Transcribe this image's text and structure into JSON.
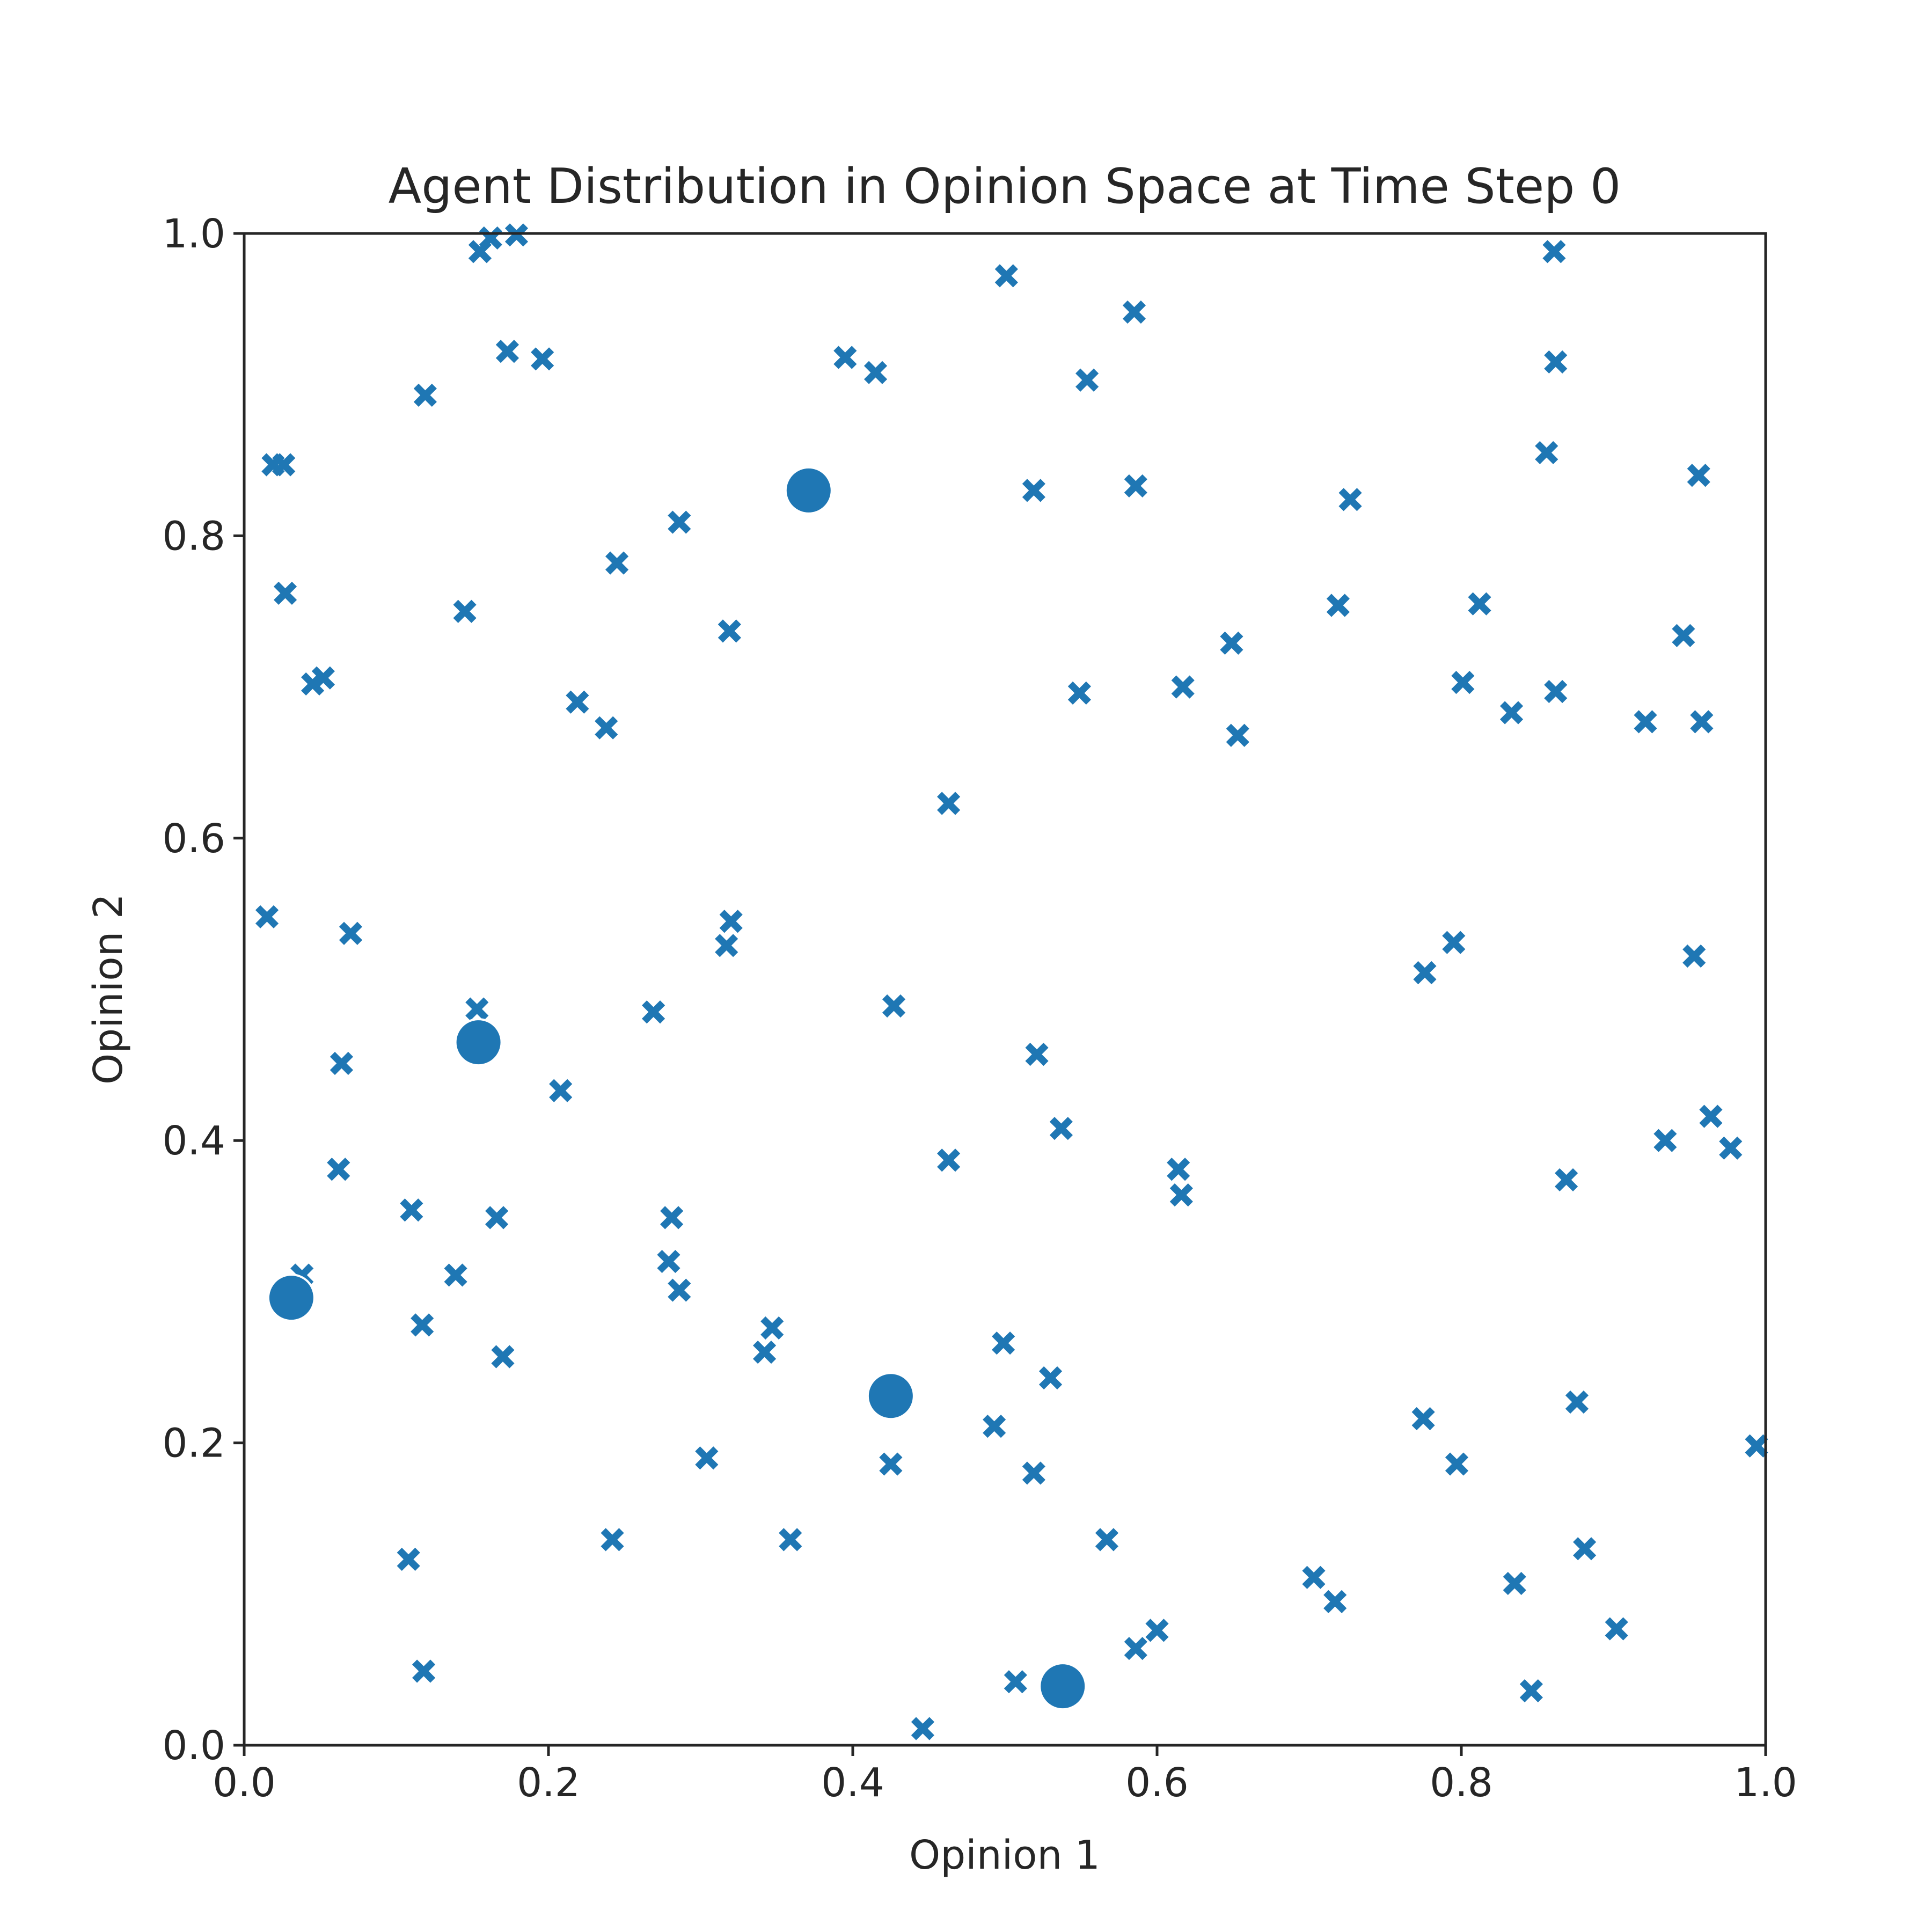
{
  "chart_data": {
    "type": "scatter",
    "title": "Agent Distribution in Opinion Space at Time Step 0",
    "xlabel": "Opinion 1",
    "ylabel": "Opinion 2",
    "xlim": [
      0.0,
      1.0
    ],
    "ylim": [
      0.0,
      1.0
    ],
    "xticks": [
      "0.0",
      "0.2",
      "0.4",
      "0.6",
      "0.8",
      "1.0"
    ],
    "yticks": [
      "0.0",
      "0.2",
      "0.4",
      "0.6",
      "0.8",
      "1.0"
    ],
    "grid": false,
    "marker_color": "#1f77b4",
    "series": [
      {
        "marker": "x",
        "points": [
          [
            0.155,
            0.988
          ],
          [
            0.162,
            0.997
          ],
          [
            0.179,
            0.999
          ],
          [
            0.173,
            0.922
          ],
          [
            0.196,
            0.917
          ],
          [
            0.119,
            0.893
          ],
          [
            0.019,
            0.847
          ],
          [
            0.026,
            0.847
          ],
          [
            0.027,
            0.762
          ],
          [
            0.145,
            0.75
          ],
          [
            0.045,
            0.702
          ],
          [
            0.052,
            0.706
          ],
          [
            0.219,
            0.69
          ],
          [
            0.238,
            0.673
          ],
          [
            0.245,
            0.782
          ],
          [
            0.286,
            0.809
          ],
          [
            0.319,
            0.737
          ],
          [
            0.395,
            0.918
          ],
          [
            0.415,
            0.908
          ],
          [
            0.501,
            0.972
          ],
          [
            0.585,
            0.948
          ],
          [
            0.554,
            0.903
          ],
          [
            0.519,
            0.83
          ],
          [
            0.586,
            0.833
          ],
          [
            0.861,
            0.988
          ],
          [
            0.862,
            0.915
          ],
          [
            0.856,
            0.855
          ],
          [
            0.956,
            0.84
          ],
          [
            0.727,
            0.824
          ],
          [
            0.719,
            0.754
          ],
          [
            0.812,
            0.755
          ],
          [
            0.946,
            0.734
          ],
          [
            0.649,
            0.729
          ],
          [
            0.549,
            0.696
          ],
          [
            0.617,
            0.7
          ],
          [
            0.801,
            0.703
          ],
          [
            0.833,
            0.683
          ],
          [
            0.862,
            0.697
          ],
          [
            0.921,
            0.677
          ],
          [
            0.958,
            0.677
          ],
          [
            0.653,
            0.668
          ],
          [
            0.463,
            0.623
          ],
          [
            0.015,
            0.548
          ],
          [
            0.07,
            0.537
          ],
          [
            0.32,
            0.545
          ],
          [
            0.317,
            0.529
          ],
          [
            0.153,
            0.487
          ],
          [
            0.269,
            0.485
          ],
          [
            0.427,
            0.489
          ],
          [
            0.064,
            0.451
          ],
          [
            0.521,
            0.457
          ],
          [
            0.208,
            0.433
          ],
          [
            0.537,
            0.408
          ],
          [
            0.776,
            0.511
          ],
          [
            0.795,
            0.531
          ],
          [
            0.953,
            0.522
          ],
          [
            0.964,
            0.416
          ],
          [
            0.934,
            0.4
          ],
          [
            0.977,
            0.395
          ],
          [
            0.062,
            0.381
          ],
          [
            0.463,
            0.387
          ],
          [
            0.614,
            0.381
          ],
          [
            0.616,
            0.364
          ],
          [
            0.869,
            0.374
          ],
          [
            0.11,
            0.354
          ],
          [
            0.166,
            0.349
          ],
          [
            0.281,
            0.349
          ],
          [
            0.279,
            0.32
          ],
          [
            0.139,
            0.311
          ],
          [
            0.038,
            0.311
          ],
          [
            0.286,
            0.301
          ],
          [
            0.117,
            0.278
          ],
          [
            0.347,
            0.276
          ],
          [
            0.342,
            0.26
          ],
          [
            0.17,
            0.257
          ],
          [
            0.499,
            0.266
          ],
          [
            0.53,
            0.243
          ],
          [
            0.876,
            0.227
          ],
          [
            0.775,
            0.216
          ],
          [
            0.493,
            0.211
          ],
          [
            0.304,
            0.19
          ],
          [
            0.425,
            0.186
          ],
          [
            0.519,
            0.18
          ],
          [
            0.797,
            0.186
          ],
          [
            0.994,
            0.198
          ],
          [
            0.242,
            0.136
          ],
          [
            0.359,
            0.136
          ],
          [
            0.567,
            0.136
          ],
          [
            0.108,
            0.123
          ],
          [
            0.881,
            0.13
          ],
          [
            0.703,
            0.111
          ],
          [
            0.717,
            0.095
          ],
          [
            0.835,
            0.107
          ],
          [
            0.902,
            0.077
          ],
          [
            0.6,
            0.076
          ],
          [
            0.586,
            0.064
          ],
          [
            0.118,
            0.049
          ],
          [
            0.507,
            0.042
          ],
          [
            0.846,
            0.036
          ],
          [
            0.446,
            0.011
          ]
        ]
      },
      {
        "marker": "o",
        "points": [
          [
            0.371,
            0.83
          ],
          [
            0.154,
            0.465
          ],
          [
            0.031,
            0.296
          ],
          [
            0.425,
            0.231
          ],
          [
            0.538,
            0.039
          ]
        ]
      }
    ]
  }
}
